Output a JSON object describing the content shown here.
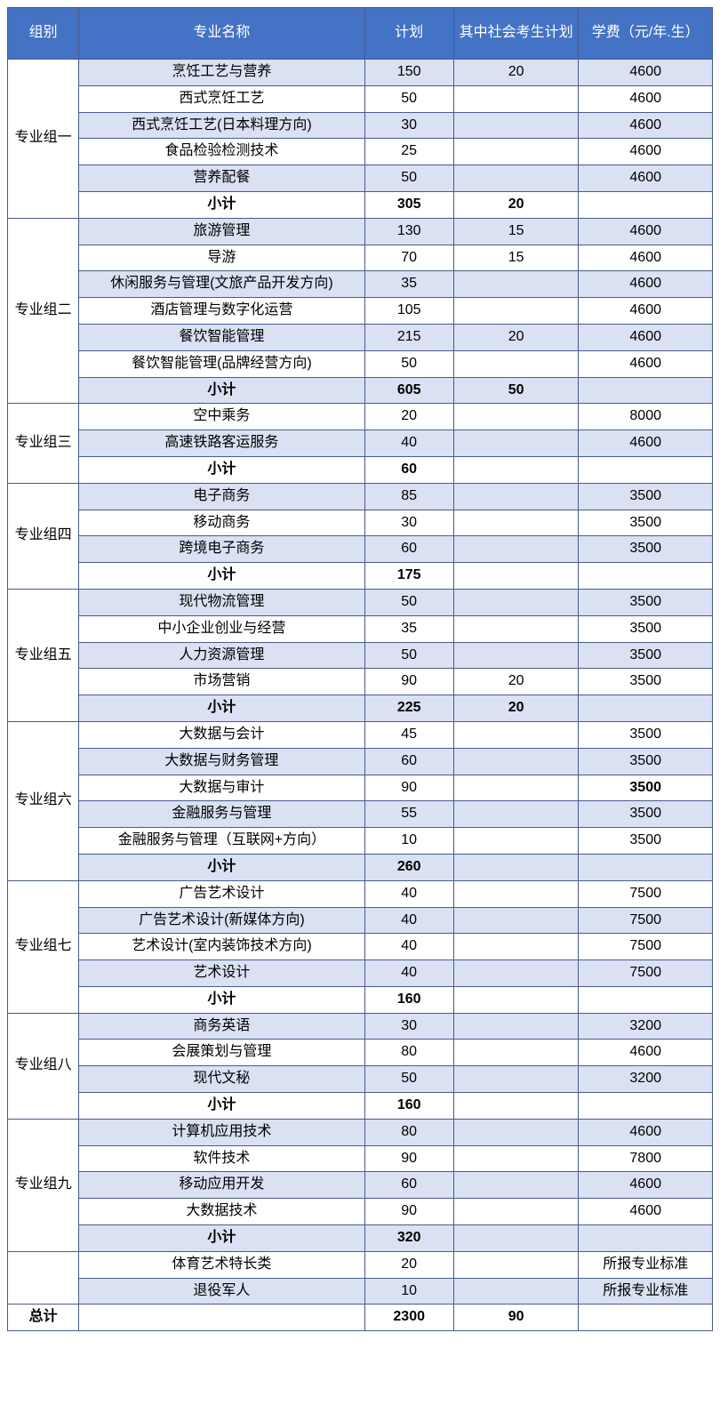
{
  "headers": {
    "group": "组别",
    "major": "专业名称",
    "plan": "计划",
    "social": "其中社会考生计划",
    "fee": "学费（元/年.生）"
  },
  "subtotal_label": "小计",
  "total_label": "总计",
  "groups": [
    {
      "name": "专业组一",
      "rows": [
        {
          "major": "烹饪工艺与营养",
          "plan": "150",
          "social": "20",
          "fee": "4600",
          "shade": true
        },
        {
          "major": "西式烹饪工艺",
          "plan": "50",
          "social": "",
          "fee": "4600",
          "shade": false
        },
        {
          "major": "西式烹饪工艺(日本料理方向)",
          "plan": "30",
          "social": "",
          "fee": "4600",
          "shade": true
        },
        {
          "major": "食品检验检测技术",
          "plan": "25",
          "social": "",
          "fee": "4600",
          "shade": false
        },
        {
          "major": "营养配餐",
          "plan": "50",
          "social": "",
          "fee": "4600",
          "shade": true
        }
      ],
      "subtotal": {
        "plan": "305",
        "social": "20",
        "fee": "",
        "shade": false
      }
    },
    {
      "name": "专业组二",
      "rows": [
        {
          "major": "旅游管理",
          "plan": "130",
          "social": "15",
          "fee": "4600",
          "shade": true
        },
        {
          "major": "导游",
          "plan": "70",
          "social": "15",
          "fee": "4600",
          "shade": false
        },
        {
          "major": "休闲服务与管理(文旅产品开发方向)",
          "plan": "35",
          "social": "",
          "fee": "4600",
          "shade": true
        },
        {
          "major": "酒店管理与数字化运营",
          "plan": "105",
          "social": "",
          "fee": "4600",
          "shade": false
        },
        {
          "major": "餐饮智能管理",
          "plan": "215",
          "social": "20",
          "fee": "4600",
          "shade": true
        },
        {
          "major": "餐饮智能管理(品牌经营方向)",
          "plan": "50",
          "social": "",
          "fee": "4600",
          "shade": false
        }
      ],
      "subtotal": {
        "plan": "605",
        "social": "50",
        "fee": "",
        "shade": true
      }
    },
    {
      "name": "专业组三",
      "rows": [
        {
          "major": "空中乘务",
          "plan": "20",
          "social": "",
          "fee": "8000",
          "shade": false
        },
        {
          "major": "高速铁路客运服务",
          "plan": "40",
          "social": "",
          "fee": "4600",
          "shade": true
        }
      ],
      "subtotal": {
        "plan": "60",
        "social": "",
        "fee": "",
        "shade": false
      }
    },
    {
      "name": "专业组四",
      "rows": [
        {
          "major": "电子商务",
          "plan": "85",
          "social": "",
          "fee": "3500",
          "shade": true
        },
        {
          "major": "移动商务",
          "plan": "30",
          "social": "",
          "fee": "3500",
          "shade": false
        },
        {
          "major": "跨境电子商务",
          "plan": "60",
          "social": "",
          "fee": "3500",
          "shade": true
        }
      ],
      "subtotal": {
        "plan": "175",
        "social": "",
        "fee": "",
        "shade": false
      }
    },
    {
      "name": "专业组五",
      "rows": [
        {
          "major": "现代物流管理",
          "plan": "50",
          "social": "",
          "fee": "3500",
          "shade": true
        },
        {
          "major": "中小企业创业与经营",
          "plan": "35",
          "social": "",
          "fee": "3500",
          "shade": false
        },
        {
          "major": "人力资源管理",
          "plan": "50",
          "social": "",
          "fee": "3500",
          "shade": true
        },
        {
          "major": "市场营销",
          "plan": "90",
          "social": "20",
          "fee": "3500",
          "shade": false
        }
      ],
      "subtotal": {
        "plan": "225",
        "social": "20",
        "fee": "",
        "shade": true
      }
    },
    {
      "name": "专业组六",
      "rows": [
        {
          "major": "大数据与会计",
          "plan": "45",
          "social": "",
          "fee": "3500",
          "shade": false
        },
        {
          "major": "大数据与财务管理",
          "plan": "60",
          "social": "",
          "fee": "3500",
          "shade": true
        },
        {
          "major": "大数据与审计",
          "plan": "90",
          "social": "",
          "fee": "3500",
          "shade": false,
          "fee_bold": true
        },
        {
          "major": "金融服务与管理",
          "plan": "55",
          "social": "",
          "fee": "3500",
          "shade": true
        },
        {
          "major": "金融服务与管理（互联网+方向）",
          "plan": "10",
          "social": "",
          "fee": "3500",
          "shade": false
        }
      ],
      "subtotal": {
        "plan": "260",
        "social": "",
        "fee": "",
        "shade": true
      }
    },
    {
      "name": "专业组七",
      "rows": [
        {
          "major": "广告艺术设计",
          "plan": "40",
          "social": "",
          "fee": "7500",
          "shade": false
        },
        {
          "major": "广告艺术设计(新媒体方向)",
          "plan": "40",
          "social": "",
          "fee": "7500",
          "shade": true
        },
        {
          "major": "艺术设计(室内装饰技术方向)",
          "plan": "40",
          "social": "",
          "fee": "7500",
          "shade": false
        },
        {
          "major": "艺术设计",
          "plan": "40",
          "social": "",
          "fee": "7500",
          "shade": true
        }
      ],
      "subtotal": {
        "plan": "160",
        "social": "",
        "fee": "",
        "shade": false
      }
    },
    {
      "name": "专业组八",
      "rows": [
        {
          "major": "商务英语",
          "plan": "30",
          "social": "",
          "fee": "3200",
          "shade": true
        },
        {
          "major": "会展策划与管理",
          "plan": "80",
          "social": "",
          "fee": "4600",
          "shade": false
        },
        {
          "major": "现代文秘",
          "plan": "50",
          "social": "",
          "fee": "3200",
          "shade": true
        }
      ],
      "subtotal": {
        "plan": "160",
        "social": "",
        "fee": "",
        "shade": false
      }
    },
    {
      "name": "专业组九",
      "rows": [
        {
          "major": "计算机应用技术",
          "plan": "80",
          "social": "",
          "fee": "4600",
          "shade": true
        },
        {
          "major": "软件技术",
          "plan": "90",
          "social": "",
          "fee": "7800",
          "shade": false
        },
        {
          "major": "移动应用开发",
          "plan": "60",
          "social": "",
          "fee": "4600",
          "shade": true
        },
        {
          "major": "大数据技术",
          "plan": "90",
          "social": "",
          "fee": "4600",
          "shade": false
        }
      ],
      "subtotal": {
        "plan": "320",
        "social": "",
        "fee": "",
        "shade": true
      }
    }
  ],
  "extra": {
    "rows": [
      {
        "major": "体育艺术特长类",
        "plan": "20",
        "social": "",
        "fee": "所报专业标准",
        "shade": false
      },
      {
        "major": "退役军人",
        "plan": "10",
        "social": "",
        "fee": "所报专业标准",
        "shade": true
      }
    ]
  },
  "total": {
    "plan": "2300",
    "social": "90",
    "fee": "",
    "shade": false
  }
}
